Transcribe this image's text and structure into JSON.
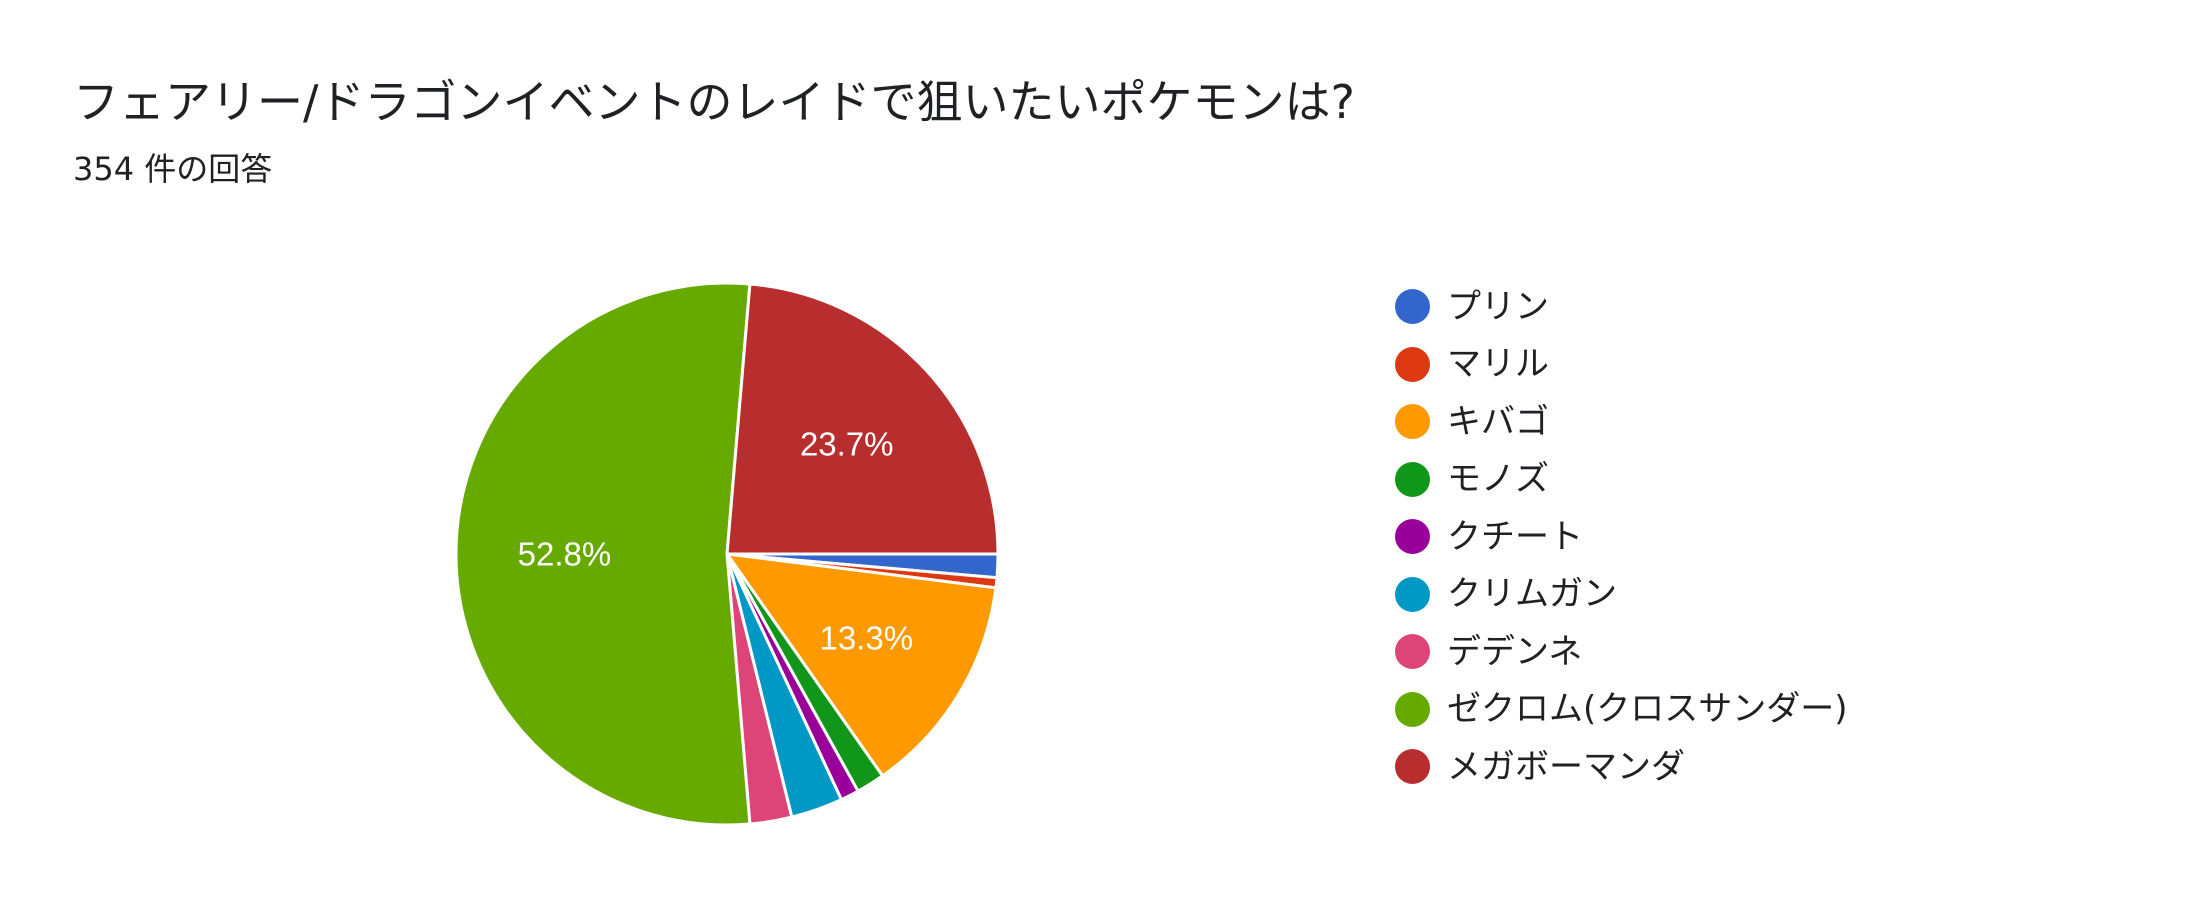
{
  "header": {
    "title": "フェアリー/ドラゴンイベントのレイドで狙いたいポケモンは?",
    "response_count": "354 件の回答"
  },
  "chart_data": {
    "type": "pie",
    "title": "フェアリー/ドラゴンイベントのレイドで狙いたいポケモンは?",
    "total_responses": 354,
    "start_angle_deg": 90,
    "direction": "clockwise",
    "legend_position": "right",
    "slices": [
      {
        "label": "プリン",
        "percent": 1.4,
        "color": "#3366cc"
      },
      {
        "label": "マリル",
        "percent": 0.6,
        "color": "#dc3912"
      },
      {
        "label": "キバゴ",
        "percent": 13.3,
        "color": "#ff9900",
        "display_label": "13.3%"
      },
      {
        "label": "モノズ",
        "percent": 1.7,
        "color": "#109618"
      },
      {
        "label": "クチート",
        "percent": 1.1,
        "color": "#990099"
      },
      {
        "label": "クリムガン",
        "percent": 3.1,
        "color": "#0099c6"
      },
      {
        "label": "デデンネ",
        "percent": 2.5,
        "color": "#dd4477"
      },
      {
        "label": "ゼクロム(クロスサンダー)",
        "percent": 52.8,
        "color": "#66aa00",
        "display_label": "52.8%"
      },
      {
        "label": "メガボーマンダ",
        "percent": 23.7,
        "color": "#b82e2e",
        "display_label": "23.7%"
      }
    ]
  }
}
